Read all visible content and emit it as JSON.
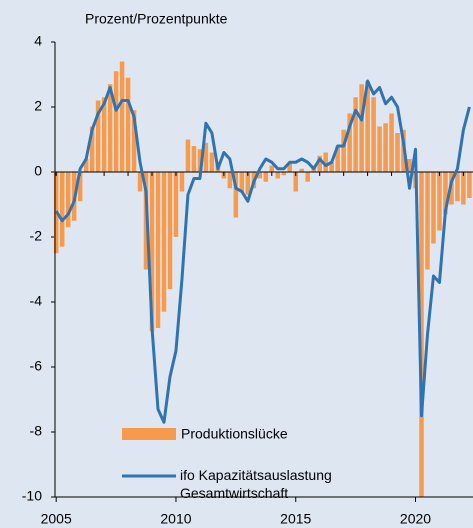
{
  "chart_data": {
    "type": "bar+line",
    "ylabel": "Prozent/Prozentpunkte",
    "x": [
      2005,
      2005.25,
      2005.5,
      2005.75,
      2006,
      2006.25,
      2006.5,
      2006.75,
      2007,
      2007.25,
      2007.5,
      2007.75,
      2008,
      2008.25,
      2008.5,
      2008.75,
      2009,
      2009.25,
      2009.5,
      2009.75,
      2010,
      2010.25,
      2010.5,
      2010.75,
      2011,
      2011.25,
      2011.5,
      2011.75,
      2012,
      2012.25,
      2012.5,
      2012.75,
      2013,
      2013.25,
      2013.5,
      2013.75,
      2014,
      2014.25,
      2014.5,
      2014.75,
      2015,
      2015.25,
      2015.5,
      2015.75,
      2016,
      2016.25,
      2016.5,
      2016.75,
      2017,
      2017.25,
      2017.5,
      2017.75,
      2018,
      2018.25,
      2018.5,
      2018.75,
      2019,
      2019.25,
      2019.5,
      2019.75,
      2020,
      2020.25,
      2020.5,
      2020.75,
      2021,
      2021.25,
      2021.5,
      2021.75,
      2022,
      2022.25
    ],
    "series": [
      {
        "name": "Produktionslücke",
        "type": "bar",
        "color": "#f79a4c",
        "values": [
          -2.5,
          -2.3,
          -1.7,
          -1.5,
          -0.9,
          0.4,
          1.4,
          2.2,
          2.3,
          2.7,
          3.1,
          3.4,
          2.9,
          1.9,
          -0.6,
          -3.0,
          -4.9,
          -4.8,
          -4.3,
          -3.6,
          -2.0,
          -0.6,
          1.0,
          0.8,
          0.7,
          0.9,
          0.6,
          0.3,
          -0.2,
          -0.5,
          -1.4,
          -0.6,
          -0.7,
          -0.5,
          -0.2,
          -0.3,
          0.2,
          -0.2,
          -0.1,
          0.3,
          -0.6,
          0.1,
          -0.3,
          0.2,
          0.5,
          0.6,
          0.3,
          0.8,
          1.3,
          1.8,
          2.3,
          2.7,
          2.8,
          2.3,
          1.4,
          1.5,
          1.8,
          1.2,
          1.3,
          0.4,
          -0.5,
          -10.0,
          -3.0,
          -2.2,
          -1.8,
          -1.3,
          -1.0,
          -0.9,
          -1.0,
          -0.8
        ]
      },
      {
        "name": "ifo Kapazitätsauslastung Gesamtwirtschaft",
        "type": "line",
        "color": "#2f73b3",
        "values": [
          -1.2,
          -1.5,
          -1.3,
          -0.9,
          0.1,
          0.4,
          1.3,
          1.8,
          2.1,
          2.6,
          1.9,
          2.2,
          2.2,
          1.7,
          0.3,
          -0.6,
          -4.8,
          -7.3,
          -7.7,
          -6.3,
          -5.5,
          -3.3,
          -0.7,
          -0.2,
          -0.2,
          1.5,
          1.2,
          0.1,
          0.6,
          0.4,
          -0.5,
          -0.6,
          -0.9,
          -0.3,
          0.1,
          0.4,
          0.3,
          0.1,
          0.1,
          0.3,
          0.3,
          0.4,
          0.3,
          0.1,
          0.4,
          0.2,
          0.3,
          0.8,
          0.8,
          1.4,
          1.9,
          1.6,
          2.8,
          2.4,
          2.6,
          2.1,
          2.3,
          2.0,
          0.9,
          -0.5,
          0.7,
          -7.5,
          -5.0,
          -3.2,
          -3.4,
          -1.2,
          -0.3,
          0.1,
          1.3,
          2.0
        ]
      }
    ],
    "xlim": [
      2004.95,
      2022.4
    ],
    "xticks": [
      2005,
      2010,
      2015,
      2020
    ],
    "ylim": [
      -10,
      4
    ],
    "yticks": [
      -10,
      -8,
      -6,
      -4,
      -2,
      0,
      2,
      4
    ]
  }
}
